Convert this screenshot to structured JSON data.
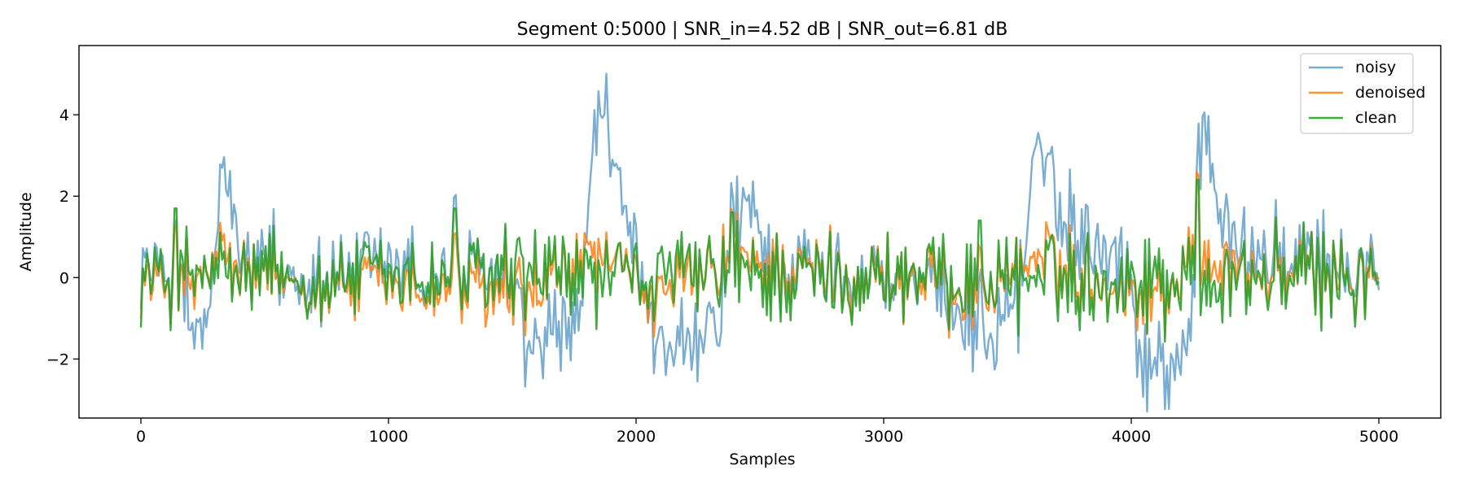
{
  "chart_data": {
    "type": "line",
    "title": "Segment 0:5000 | SNR_in=4.52 dB | SNR_out=6.81 dB",
    "xlabel": "Samples",
    "ylabel": "Amplitude",
    "xlim": [
      -250,
      5250
    ],
    "ylim": [
      -3.45,
      5.7
    ],
    "x_ticks": [
      0,
      1000,
      2000,
      3000,
      4000,
      5000
    ],
    "x_tick_labels": [
      "0",
      "1000",
      "2000",
      "3000",
      "4000",
      "5000"
    ],
    "y_ticks": [
      -2,
      0,
      2,
      4
    ],
    "y_tick_labels": [
      "−2",
      "0",
      "2",
      "4"
    ],
    "grid": false,
    "legend_position": "top-right",
    "n_samples": 5000,
    "sample_step": 8,
    "series": [
      {
        "name": "noisy",
        "color": "#1f77b4",
        "opacity": 0.6,
        "baseline_keypoints": [
          [
            0,
            0.3
          ],
          [
            150,
            0.0
          ],
          [
            200,
            -1.4
          ],
          [
            260,
            -1.6
          ],
          [
            300,
            0.5
          ],
          [
            330,
            2.6
          ],
          [
            360,
            2.0
          ],
          [
            400,
            0.4
          ],
          [
            520,
            0.1
          ],
          [
            800,
            0.1
          ],
          [
            1300,
            0.2
          ],
          [
            1500,
            -0.2
          ],
          [
            1570,
            -1.8
          ],
          [
            1700,
            -1.5
          ],
          [
            1790,
            -0.4
          ],
          [
            1830,
            3.6
          ],
          [
            1870,
            4.4
          ],
          [
            1900,
            3.0
          ],
          [
            1960,
            1.1
          ],
          [
            2040,
            0.0
          ],
          [
            2090,
            -1.8
          ],
          [
            2200,
            -1.9
          ],
          [
            2330,
            -1.5
          ],
          [
            2370,
            0.6
          ],
          [
            2450,
            1.6
          ],
          [
            2510,
            1.0
          ],
          [
            2560,
            0.3
          ],
          [
            3000,
            0.1
          ],
          [
            3200,
            -0.2
          ],
          [
            3380,
            -1.2
          ],
          [
            3460,
            -1.4
          ],
          [
            3560,
            0.0
          ],
          [
            3610,
            3.6
          ],
          [
            3660,
            2.3
          ],
          [
            3720,
            1.6
          ],
          [
            3800,
            1.2
          ],
          [
            3860,
            1.1
          ],
          [
            3950,
            0.6
          ],
          [
            4000,
            -0.3
          ],
          [
            4040,
            -2.0
          ],
          [
            4150,
            -2.2
          ],
          [
            4230,
            -1.6
          ],
          [
            4265,
            0.4
          ],
          [
            4290,
            4.1
          ],
          [
            4330,
            2.8
          ],
          [
            4380,
            1.3
          ],
          [
            4450,
            0.5
          ],
          [
            5000,
            0.2
          ]
        ],
        "noise_amplitude": 0.45,
        "clean_weight": 0.9
      },
      {
        "name": "denoised",
        "color": "#ff7f0e",
        "opacity": 0.85,
        "baseline_keypoints": [
          [
            0,
            0.0
          ],
          [
            200,
            -0.3
          ],
          [
            330,
            0.5
          ],
          [
            400,
            0.0
          ],
          [
            1570,
            -0.5
          ],
          [
            1850,
            0.6
          ],
          [
            2100,
            -0.5
          ],
          [
            2400,
            0.4
          ],
          [
            3400,
            -0.3
          ],
          [
            3610,
            0.5
          ],
          [
            4100,
            -0.5
          ],
          [
            4290,
            0.6
          ],
          [
            4500,
            0.1
          ],
          [
            5000,
            0.0
          ]
        ],
        "noise_amplitude": 0.2,
        "clean_weight": 0.85
      },
      {
        "name": "clean",
        "color": "#2ca02c",
        "opacity": 0.9,
        "baseline_keypoints": [
          [
            0,
            0.0
          ],
          [
            5000,
            0.0
          ]
        ],
        "noise_amplitude": 0.0,
        "clean_weight": 1.0,
        "clean_amplitude": 0.75,
        "clean_peak_events": [
          [
            1270,
            1.7
          ],
          [
            2390,
            1.6
          ],
          [
            3390,
            1.4
          ],
          [
            4270,
            2.4
          ],
          [
            140,
            1.7
          ]
        ]
      }
    ]
  }
}
